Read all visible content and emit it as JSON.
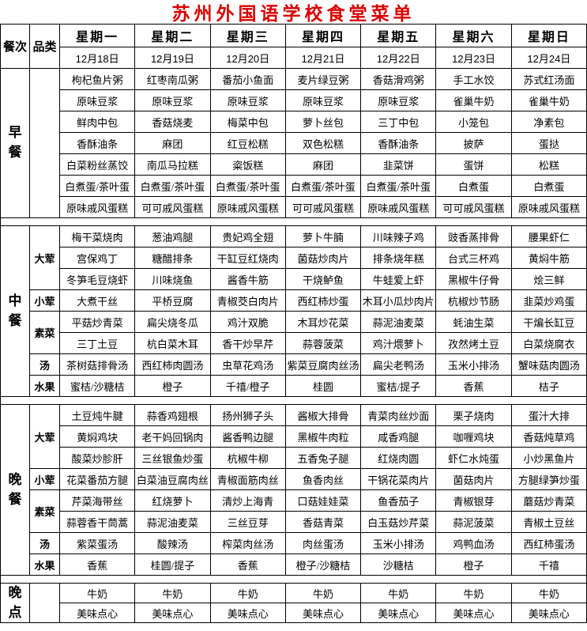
{
  "title": "苏州外国语学校食堂菜单",
  "title_color": "#d90000",
  "header": {
    "corner_meal": "餐次",
    "corner_category": "品类",
    "days": [
      "星期一",
      "星期二",
      "星期三",
      "星期四",
      "星期五",
      "星期六",
      "星期日"
    ],
    "dates": [
      "12月18日",
      "12月19日",
      "12月20日",
      "12月21日",
      "12月22日",
      "12月23日",
      "12月24日"
    ]
  },
  "sections": {
    "breakfast": {
      "meal_label": "早餐",
      "rows": [
        [
          "枸杞鱼片粥",
          "红枣南瓜粥",
          "番茄小鱼面",
          "麦片绿豆粥",
          "香菇滑鸡粥",
          "手工水饺",
          "苏式红汤面"
        ],
        [
          "原味豆浆",
          "原味豆浆",
          "原味豆浆",
          "原味豆浆",
          "原味豆浆",
          "雀巢牛奶",
          "雀巢牛奶"
        ],
        [
          "鲜肉中包",
          "香菇烧麦",
          "梅菜中包",
          "萝卜丝包",
          "三丁中包",
          "小笼包",
          "净素包"
        ],
        [
          "香酥油条",
          "麻团",
          "红豆松糕",
          "双色松糕",
          "香酥油条",
          "披萨",
          "蛋挞"
        ],
        [
          "白菜粉丝蒸饺",
          "南瓜马拉糕",
          "粢饭糕",
          "麻团",
          "韭菜饼",
          "蛋饼",
          "松糕"
        ],
        [
          "白煮蛋/茶叶蛋",
          "白煮蛋/茶叶蛋",
          "白煮蛋/茶叶蛋",
          "白煮蛋/茶叶蛋",
          "白煮蛋/茶叶蛋",
          "白煮蛋",
          "白煮蛋"
        ],
        [
          "原味戚风蛋糕",
          "可可戚风蛋糕",
          "原味戚风蛋糕",
          "可可戚风蛋糕",
          "原味戚风蛋糕",
          "可可戚风蛋糕",
          "原味戚风蛋糕"
        ]
      ]
    },
    "lunch": {
      "meal_label": "中餐",
      "groups": [
        {
          "label": "大荤",
          "rows": [
            [
              "梅干菜烧肉",
              "葱油鸡腿",
              "贵妃鸡全翅",
              "萝卜牛腩",
              "川味辣子鸡",
              "豉香蒸排骨",
              "腰果虾仁"
            ],
            [
              "宫保鸡丁",
              "糖醋排条",
              "干缸豆红烧肉",
              "菌菇炒肉片",
              "排条烧年糕",
              "台式三杯鸡",
              "黄焖牛筋"
            ],
            [
              "冬笋毛豆烧虾",
              "川味烧鱼",
              "酱香牛筋",
              "干烧鲈鱼",
              "牛蛙爱上虾",
              "黑椒牛仔骨",
              "烩三鲜"
            ]
          ]
        },
        {
          "label": "小荤",
          "rows": [
            [
              "大煮干丝",
              "平桥豆腐",
              "青椒茭白肉片",
              "西红柿炒蛋",
              "木耳小瓜炒肉片",
              "杭椒炒节肠",
              "韭菜炒鸡蛋"
            ]
          ]
        },
        {
          "label": "素菜",
          "rows": [
            [
              "平菇炒青菜",
              "扁尖烧冬瓜",
              "鸡汁双脆",
              "木耳炒花菜",
              "蒜泥油麦菜",
              "蚝油生菜",
              "干煸长缸豆"
            ],
            [
              "三丁土豆",
              "杭白菜木耳",
              "香干炒早芹",
              "蒜蓉菠菜",
              "鸡汁煨萝卜",
              "孜然烤土豆",
              "白菜烧腐衣"
            ]
          ]
        },
        {
          "label": "汤",
          "rows": [
            [
              "茶树菇排骨汤",
              "西红柿肉圆汤",
              "虫草花鸡汤",
              "紫菜豆腐肉丝汤",
              "扁尖老鸭汤",
              "玉米小排汤",
              "蟹味菇肉圆汤"
            ]
          ]
        },
        {
          "label": "水果",
          "rows": [
            [
              "蜜桔/沙糖桔",
              "橙子",
              "千禧/橙子",
              "桂圆",
              "蜜桔/提子",
              "香蕉",
              "桔子"
            ]
          ]
        }
      ]
    },
    "dinner": {
      "meal_label": "晚餐",
      "groups": [
        {
          "label": "大荤",
          "rows": [
            [
              "土豆炖牛腱",
              "蒜香鸡翅根",
              "扬州狮子头",
              "酱椒大排骨",
              "青菜肉丝炒面",
              "栗子烧肉",
              "蛋汁大排"
            ],
            [
              "黄焖鸡块",
              "老干妈回锅肉",
              "酱香鸭边腿",
              "黑椒牛肉粒",
              "咸香鸡腿",
              "咖喱鸡块",
              "香菇炖草鸡"
            ],
            [
              "酸菜炒胗肝",
              "三丝银鱼炒蛋",
              "杭椒牛柳",
              "五香兔子腿",
              "红烧肉圆",
              "虾仁水炖蛋",
              "小炒黑鱼片"
            ]
          ]
        },
        {
          "label": "小荤",
          "rows": [
            [
              "花菜番茄方腿",
              "白菜油豆腐肉丝",
              "青椒面筋肉丝",
              "鱼香肉丝",
              "干锅花菜肉片",
              "菌菇肉片",
              "方腿绿笋炒蛋"
            ]
          ]
        },
        {
          "label": "素菜",
          "rows": [
            [
              "芹菜海带丝",
              "红烧萝卜",
              "清炒上海青",
              "口菇娃娃菜",
              "鱼香茄子",
              "青椒银芽",
              "蘑菇炒青菜"
            ],
            [
              "蒜蓉香干茼蒿",
              "蒜泥油麦菜",
              "三丝豆芽",
              "香菇青菜",
              "白玉菇炒芹菜",
              "蒜泥菠菜",
              "青椒土豆丝"
            ]
          ]
        },
        {
          "label": "汤",
          "rows": [
            [
              "紫菜蛋汤",
              "酸辣汤",
              "榨菜肉丝汤",
              "肉丝蛋汤",
              "玉米小排汤",
              "鸡鸭血汤",
              "西红柿蛋汤"
            ]
          ]
        },
        {
          "label": "水果",
          "rows": [
            [
              "香蕉",
              "桂圆/提子",
              "香蕉",
              "橙子/沙糖桔",
              "沙糖桔",
              "橙子",
              "千禧"
            ]
          ]
        }
      ]
    },
    "snack": {
      "meal_label": "晚点",
      "rows": [
        [
          "牛奶",
          "牛奶",
          "牛奶",
          "牛奶",
          "牛奶",
          "牛奶",
          "牛奶"
        ],
        [
          "美味点心",
          "美味点心",
          "美味点心",
          "美味点心",
          "美味点心",
          "美味点心",
          "美味点心"
        ]
      ]
    }
  }
}
